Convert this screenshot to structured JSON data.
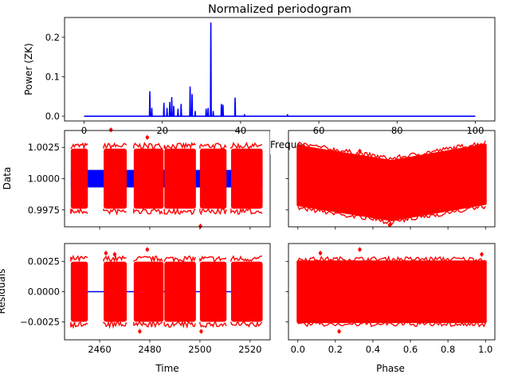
{
  "figure": {
    "title": "Normalized periodogram",
    "colors": {
      "periodogram_line": "#0000ff",
      "data_points": "#ff0000",
      "model_line": "#0000ff",
      "axes": "#000000",
      "background": "#ffffff"
    }
  },
  "chart_data": [
    {
      "id": "periodogram",
      "type": "line",
      "title": "Normalized periodogram",
      "xlabel": "Freque",
      "ylabel": "Power (ZK)",
      "xlim": [
        -5,
        105
      ],
      "ylim": [
        -0.012,
        0.25
      ],
      "xticks": [
        0,
        20,
        40,
        60,
        80,
        100
      ],
      "yticks": [
        0.0,
        0.1,
        0.2
      ],
      "ytick_labels": [
        "0.0",
        "0.1",
        "0.2"
      ],
      "baseline": 0.0,
      "peaks": [
        {
          "x": 16.8,
          "y": 0.062
        },
        {
          "x": 17.3,
          "y": 0.02
        },
        {
          "x": 20.4,
          "y": 0.033
        },
        {
          "x": 21.2,
          "y": 0.02
        },
        {
          "x": 21.9,
          "y": 0.035
        },
        {
          "x": 22.4,
          "y": 0.047
        },
        {
          "x": 22.9,
          "y": 0.025
        },
        {
          "x": 24.0,
          "y": 0.018
        },
        {
          "x": 24.8,
          "y": 0.03
        },
        {
          "x": 27.1,
          "y": 0.074
        },
        {
          "x": 27.6,
          "y": 0.055
        },
        {
          "x": 28.4,
          "y": 0.012
        },
        {
          "x": 31.2,
          "y": 0.018
        },
        {
          "x": 31.7,
          "y": 0.02
        },
        {
          "x": 32.4,
          "y": 0.236
        },
        {
          "x": 33.0,
          "y": 0.012
        },
        {
          "x": 35.1,
          "y": 0.03
        },
        {
          "x": 35.5,
          "y": 0.028
        },
        {
          "x": 38.6,
          "y": 0.046
        },
        {
          "x": 41.0,
          "y": 0.004
        },
        {
          "x": 52.0,
          "y": 0.004
        }
      ],
      "series_color": "#0000ff"
    },
    {
      "id": "data_vs_time",
      "type": "scatter",
      "xlabel": "",
      "ylabel": "Data",
      "xlim": [
        2446,
        2528
      ],
      "ylim": [
        0.99615,
        1.00385
      ],
      "yticks": [
        0.9975,
        1.0,
        1.0025
      ],
      "ytick_labels": [
        "0.9975",
        "1.0000",
        "1.0025"
      ],
      "xticks": [
        2460,
        2480,
        2500,
        2520
      ],
      "show_xtick_labels": false,
      "observing_segments": [
        [
          2448.5,
          2455.3
        ],
        [
          2461.6,
          2470.8
        ],
        [
          2473.6,
          2485.5
        ],
        [
          2485.8,
          2498.4
        ],
        [
          2500.0,
          2510.6
        ],
        [
          2512.4,
          2525.0
        ]
      ],
      "scatter_center": 1.0,
      "scatter_halfwidth": 0.0024,
      "model_band": [
        0.9993,
        1.0007
      ],
      "model_gaps": [
        [
          2455.3,
          2461.6
        ],
        [
          2470.8,
          2473.6
        ]
      ],
      "outliers": [
        {
          "x": 2464.5,
          "y": 1.0039
        },
        {
          "x": 2479.0,
          "y": 1.0033
        },
        {
          "x": 2500.2,
          "y": 0.9962
        }
      ],
      "series_color": "#ff0000",
      "model_color": "#0000ff"
    },
    {
      "id": "data_vs_phase",
      "type": "scatter",
      "xlabel": "",
      "ylabel": "",
      "xlim": [
        -0.05,
        1.05
      ],
      "ylim": [
        0.99615,
        1.00385
      ],
      "xticks": [
        0.0,
        0.2,
        0.4,
        0.6,
        0.8,
        1.0
      ],
      "yticks": [
        0.9975,
        1.0,
        1.0025
      ],
      "show_xtick_labels": false,
      "show_ytick_labels": false,
      "band_top": [
        {
          "x": 0.0,
          "y": 1.0026
        },
        {
          "x": 0.5,
          "y": 1.0014
        },
        {
          "x": 1.0,
          "y": 1.0027
        }
      ],
      "band_bottom": [
        {
          "x": 0.0,
          "y": 0.9979
        },
        {
          "x": 0.5,
          "y": 0.9967
        },
        {
          "x": 1.0,
          "y": 0.998
        }
      ],
      "outliers": [
        {
          "x": 0.03,
          "y": 1.0026
        },
        {
          "x": 0.33,
          "y": 1.0022
        },
        {
          "x": 0.49,
          "y": 0.9963
        },
        {
          "x": 0.9,
          "y": 1.0019
        }
      ],
      "series_color": "#ff0000"
    },
    {
      "id": "residuals_vs_time",
      "type": "scatter",
      "xlabel": "Time",
      "ylabel": "Residuals",
      "xlim": [
        2446,
        2528
      ],
      "ylim": [
        -0.004,
        0.004
      ],
      "xticks": [
        2460,
        2480,
        2500,
        2520
      ],
      "xtick_labels": [
        "2460",
        "2480",
        "2500",
        "2520"
      ],
      "yticks": [
        -0.0025,
        0.0,
        0.0025
      ],
      "ytick_labels": [
        "−0.0025",
        "0.0000",
        "0.0025"
      ],
      "observing_segments": [
        [
          2448.5,
          2455.3
        ],
        [
          2461.6,
          2470.8
        ],
        [
          2473.6,
          2485.5
        ],
        [
          2485.8,
          2498.4
        ],
        [
          2500.0,
          2510.6
        ],
        [
          2512.4,
          2525.0
        ]
      ],
      "scatter_center": 0.0,
      "scatter_halfwidth": 0.0025,
      "outliers": [
        {
          "x": 2462.5,
          "y": 0.0032
        },
        {
          "x": 2466.0,
          "y": 0.0031
        },
        {
          "x": 2479.0,
          "y": 0.0035
        },
        {
          "x": 2476.0,
          "y": -0.0033
        },
        {
          "x": 2500.5,
          "y": -0.0033
        }
      ],
      "series_color": "#ff0000",
      "model_color": "#0000ff"
    },
    {
      "id": "residuals_vs_phase",
      "type": "scatter",
      "xlabel": "Phase",
      "ylabel": "",
      "xlim": [
        -0.05,
        1.05
      ],
      "ylim": [
        -0.004,
        0.004
      ],
      "xticks": [
        0.0,
        0.2,
        0.4,
        0.6,
        0.8,
        1.0
      ],
      "xtick_labels": [
        "0.0",
        "0.2",
        "0.4",
        "0.6",
        "0.8",
        "1.0"
      ],
      "yticks": [
        -0.0025,
        0.0,
        0.0025
      ],
      "show_ytick_labels": false,
      "band_center": 0.0,
      "band_halfwidth": 0.0025,
      "outliers": [
        {
          "x": 0.12,
          "y": 0.0032
        },
        {
          "x": 0.33,
          "y": 0.0035
        },
        {
          "x": 0.22,
          "y": -0.0033
        },
        {
          "x": 0.98,
          "y": 0.0031
        }
      ],
      "series_color": "#ff0000"
    }
  ]
}
